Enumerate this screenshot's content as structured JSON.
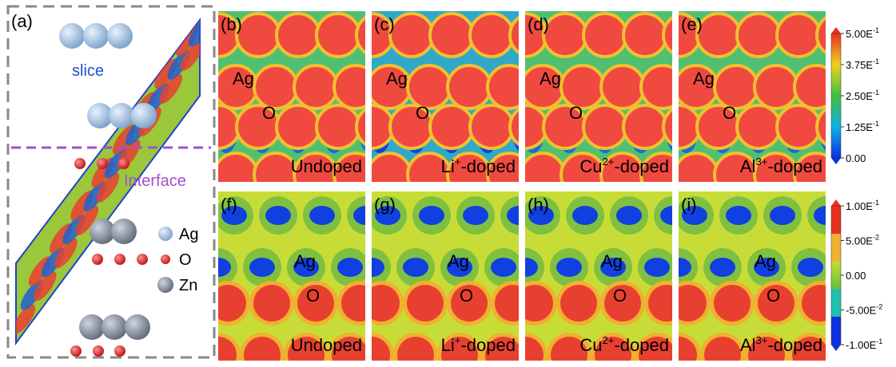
{
  "panel_a": {
    "label": "(a)",
    "slice": "slice",
    "interface": "Interface",
    "legend": [
      "Ag",
      "O",
      "Zn"
    ]
  },
  "top_panels": [
    {
      "label": "(b)",
      "ag": "Ag",
      "o": "O",
      "name": "Undoped"
    },
    {
      "label": "(c)",
      "ag": "Ag",
      "o": "O",
      "name": "Li",
      "charge": "+",
      "suffix": "-doped"
    },
    {
      "label": "(d)",
      "ag": "Ag",
      "o": "O",
      "name": "Cu",
      "charge": "2+",
      "suffix": "-doped"
    },
    {
      "label": "(e)",
      "ag": "Ag",
      "o": "O",
      "name": "Al",
      "charge": "3+",
      "suffix": "-doped"
    }
  ],
  "bottom_panels": [
    {
      "label": "(f)",
      "ag": "Ag",
      "o": "O",
      "name": "Undoped"
    },
    {
      "label": "(g)",
      "ag": "Ag",
      "o": "O",
      "name": "Li",
      "charge": "+",
      "suffix": "-doped"
    },
    {
      "label": "(h)",
      "ag": "Ag",
      "o": "O",
      "name": "Cu",
      "charge": "2+",
      "suffix": "-doped"
    },
    {
      "label": "(i)",
      "ag": "Ag",
      "o": "O",
      "name": "Al",
      "charge": "3+",
      "suffix": "-doped"
    }
  ],
  "colorbars": [
    {
      "ticks": [
        {
          "base": "5.00E",
          "exp": "-1"
        },
        {
          "base": "3.75E",
          "exp": "-1"
        },
        {
          "base": "2.50E",
          "exp": "-1"
        },
        {
          "base": "1.25E",
          "exp": "-1"
        },
        {
          "base": "0.00"
        }
      ]
    },
    {
      "ticks": [
        {
          "base": "1.00E",
          "exp": "-1"
        },
        {
          "base": "5.00E",
          "exp": "-2"
        },
        {
          "base": "0.00"
        },
        {
          "base": "-5.00E",
          "exp": "-2"
        },
        {
          "base": "-1.00E",
          "exp": "-1"
        }
      ]
    }
  ]
}
